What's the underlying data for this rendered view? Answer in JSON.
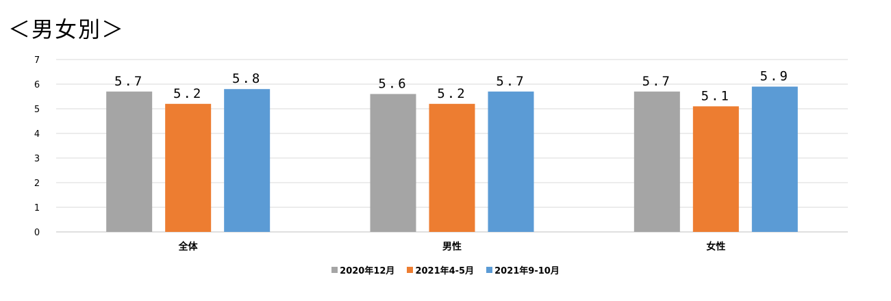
{
  "page": {
    "title": "＜男女別＞"
  },
  "chart_data": {
    "type": "bar",
    "categories": [
      "全体",
      "男性",
      "女性"
    ],
    "series": [
      {
        "name": "2020年12月",
        "color": "#a5a5a5",
        "values": [
          5.7,
          5.6,
          5.7
        ],
        "labels": [
          "5.7",
          "5.6",
          "5.7"
        ]
      },
      {
        "name": "2021年4-5月",
        "color": "#ed7d31",
        "values": [
          5.2,
          5.2,
          5.1
        ],
        "labels": [
          "5.2",
          "5.2",
          "5.1"
        ]
      },
      {
        "name": "2021年9-10月",
        "color": "#5b9bd5",
        "values": [
          5.8,
          5.7,
          5.9
        ],
        "labels": [
          "5.8",
          "5.7",
          "5.9"
        ]
      }
    ],
    "ylim": [
      0,
      7
    ],
    "yticks": [
      "0",
      "1",
      "2",
      "3",
      "4",
      "5",
      "6",
      "7"
    ],
    "grid": true,
    "legend_position": "bottom"
  }
}
